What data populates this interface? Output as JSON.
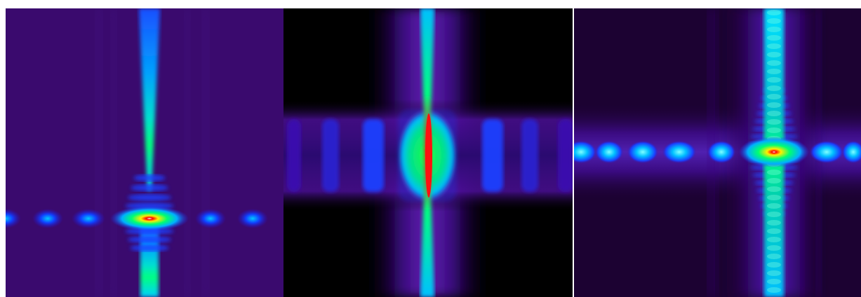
{
  "figure": {
    "panels": [
      {
        "id": "panel-a",
        "background": "#3a0a6e"
      },
      {
        "id": "panel-b",
        "background": "#000000"
      },
      {
        "id": "panel-c",
        "background": "#1c0232"
      }
    ],
    "colormap": [
      "#000000",
      "#3a0a6e",
      "#1a1aff",
      "#00c0ff",
      "#00ff60",
      "#ffff00",
      "#ff0000",
      "#ffffff"
    ]
  }
}
